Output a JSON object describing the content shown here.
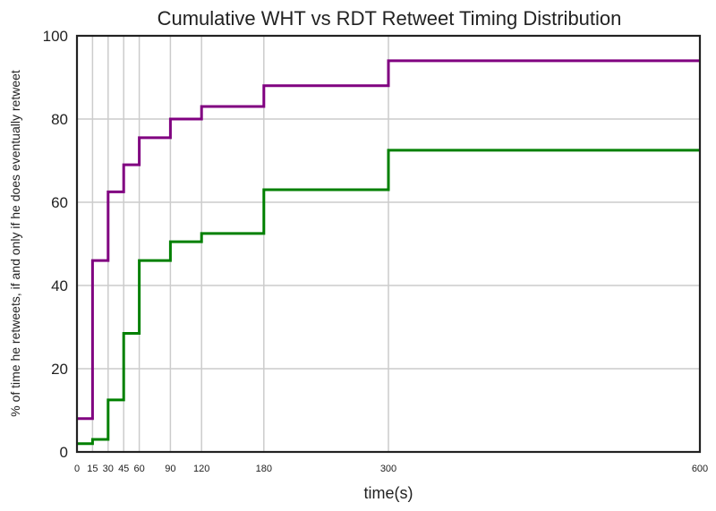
{
  "chart_data": {
    "type": "line",
    "step": true,
    "title": "Cumulative WHT vs RDT Retweet Timing Distribution",
    "xlabel": "time(s)",
    "ylabel": "% of time he retweets, if and only if he does eventually retweet",
    "xlim": [
      0,
      600
    ],
    "ylim": [
      0,
      100
    ],
    "x_ticks": [
      0,
      15,
      30,
      45,
      60,
      90,
      120,
      180,
      300,
      600
    ],
    "y_ticks": [
      0,
      20,
      40,
      60,
      80,
      100
    ],
    "grid": true,
    "legend": "none",
    "x": [
      0,
      15,
      30,
      45,
      60,
      90,
      120,
      180,
      300,
      600
    ],
    "series": [
      {
        "color": "#800080",
        "values": [
          8,
          46,
          62.5,
          69,
          75.5,
          80,
          83,
          88,
          94,
          94
        ]
      },
      {
        "color": "#008000",
        "values": [
          2,
          3,
          12.5,
          28.5,
          46,
          50.5,
          52.5,
          63,
          72.5,
          72.5
        ]
      }
    ]
  }
}
